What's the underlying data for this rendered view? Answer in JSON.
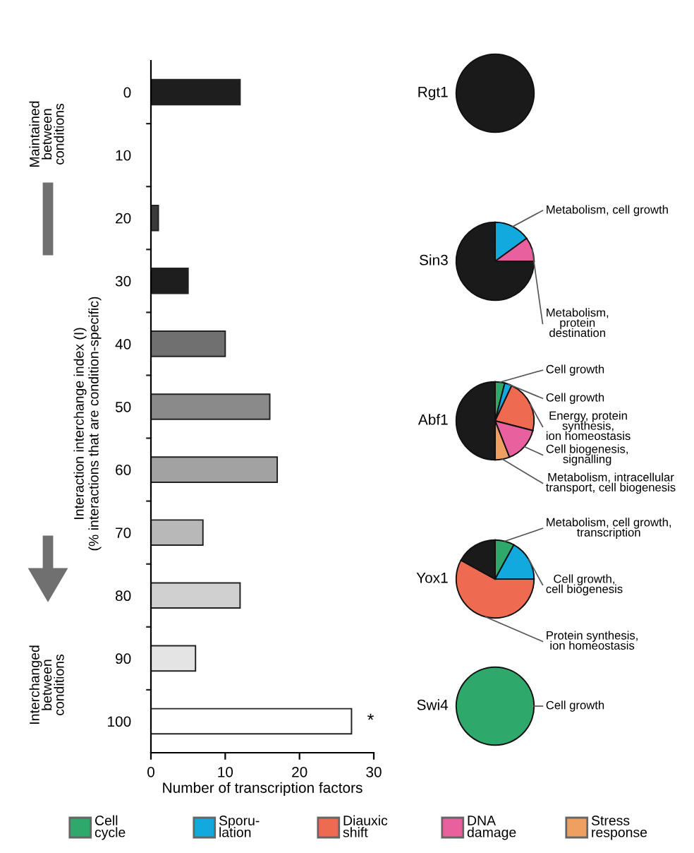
{
  "chart_data": [
    {
      "type": "bar",
      "orientation": "horizontal",
      "categories": [
        "0",
        "10",
        "20",
        "30",
        "40",
        "50",
        "60",
        "70",
        "80",
        "90",
        "100"
      ],
      "values": [
        12,
        0,
        1,
        5,
        10,
        16,
        17,
        7,
        12,
        6,
        27
      ],
      "colors": [
        "#1e1e1e",
        "#1e1e1e",
        "#3a3a3a",
        "#1e1e1e",
        "#707070",
        "#8a8a8a",
        "#a2a2a2",
        "#b8b8b8",
        "#d0d0d0",
        "#e4e4e4",
        "#ffffff"
      ],
      "xlim": [
        0,
        30
      ],
      "xticks": [
        0,
        10,
        20,
        30
      ],
      "xlabel": "Number of transcription factors",
      "ylabel": "Interaction interchange index (I)\n(% interactions that are condition-specific)",
      "annotations": [
        "Maintained\nbetween\nconditions",
        "Interchanged\nbetween\nconditions",
        {
          "text": "*",
          "x": 27,
          "y": "100"
        }
      ],
      "grid": false
    },
    {
      "type": "pie",
      "title": "Rgt1",
      "categories": [
        null
      ],
      "values": [
        100
      ],
      "colors": [
        "#1a1a1a"
      ]
    },
    {
      "type": "pie",
      "title": "Sin3",
      "categories": [
        "Metabolism, cell growth",
        "Metabolism,\nprotein\ndestination",
        null
      ],
      "values": [
        15,
        10,
        75
      ],
      "colors": [
        "#12a9df",
        "#e8609e",
        "#1a1a1a"
      ]
    },
    {
      "type": "pie",
      "title": "Abf1",
      "categories": [
        "Cell growth",
        "Cell growth",
        "Energy, protein\nsynthesis,\nion homeostasis",
        "Cell biogenesis,\nsignalling",
        "Metabolism, intracellular\ntransport, cell biogenesis",
        null
      ],
      "values": [
        4,
        3,
        22,
        15,
        6,
        50
      ],
      "colors": [
        "#2fa86b",
        "#12a9df",
        "#ee6a50",
        "#e8609e",
        "#efa060",
        "#1a1a1a"
      ]
    },
    {
      "type": "pie",
      "title": "Yox1",
      "categories": [
        "Metabolism, cell growth,\ntranscription",
        "Cell growth,\ncell biogenesis",
        "Protein synthesis,\nion homeostasis",
        null
      ],
      "values": [
        8,
        17,
        58,
        17
      ],
      "colors": [
        "#2fa86b",
        "#12a9df",
        "#ee6a50",
        "#1a1a1a"
      ]
    },
    {
      "type": "pie",
      "title": "Swi4",
      "categories": [
        "Cell growth"
      ],
      "values": [
        100
      ],
      "colors": [
        "#2fa86b"
      ]
    },
    {
      "type": "other",
      "categories": [
        "Cell\ncycle",
        "Sporu-\nlation",
        "Diauxic\nshift",
        "DNA\ndamage",
        "Stress\nresponse"
      ],
      "colors": [
        "#2fa86b",
        "#12a9df",
        "#ee6a50",
        "#e8609e",
        "#efa060"
      ]
    }
  ]
}
